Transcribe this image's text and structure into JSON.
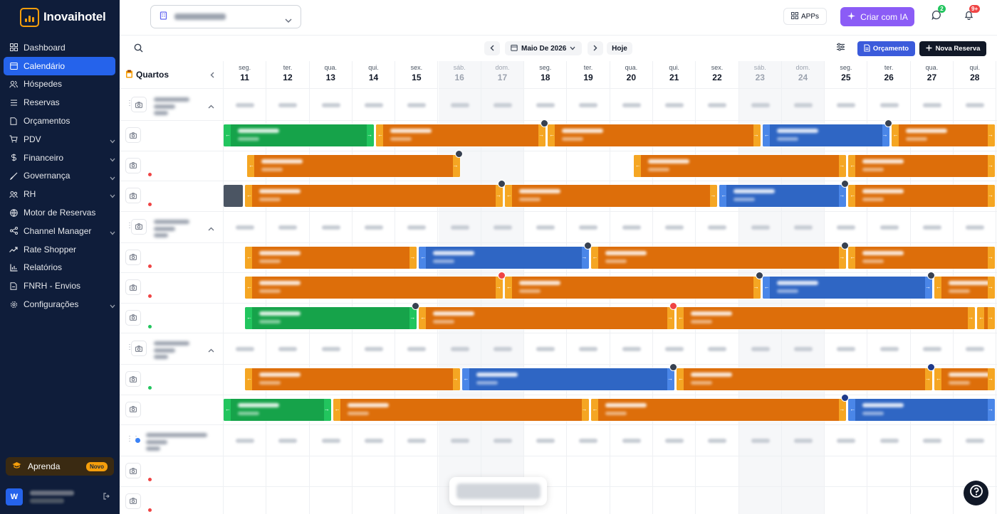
{
  "brand": {
    "name": "Inovaihotel",
    "accent": "#f59e0b"
  },
  "sidebar": {
    "items": [
      {
        "label": "Dashboard",
        "icon": "grid-icon",
        "active": false,
        "has_submenu": false
      },
      {
        "label": "Calendário",
        "icon": "calendar-icon",
        "active": true,
        "has_submenu": false
      },
      {
        "label": "Hóspedes",
        "icon": "users-icon",
        "active": false,
        "has_submenu": false
      },
      {
        "label": "Reservas",
        "icon": "reservations-icon",
        "active": false,
        "has_submenu": false
      },
      {
        "label": "Orçamentos",
        "icon": "document-icon",
        "active": false,
        "has_submenu": false
      },
      {
        "label": "PDV",
        "icon": "cart-icon",
        "active": false,
        "has_submenu": true
      },
      {
        "label": "Financeiro",
        "icon": "money-icon",
        "active": false,
        "has_submenu": true
      },
      {
        "label": "Governança",
        "icon": "broom-icon",
        "active": false,
        "has_submenu": true
      },
      {
        "label": "RH",
        "icon": "team-icon",
        "active": false,
        "has_submenu": true
      },
      {
        "label": "Motor de Reservas",
        "icon": "globe-icon",
        "active": false,
        "has_submenu": false
      },
      {
        "label": "Channel Manager",
        "icon": "share-icon",
        "active": false,
        "has_submenu": true
      },
      {
        "label": "Rate Shopper",
        "icon": "trend-icon",
        "active": false,
        "has_submenu": false
      },
      {
        "label": "Relatórios",
        "icon": "chart-icon",
        "active": false,
        "has_submenu": false
      },
      {
        "label": "FNRH - Envios",
        "icon": "file-send-icon",
        "active": false,
        "has_submenu": false
      },
      {
        "label": "Configurações",
        "icon": "gear-icon",
        "active": false,
        "has_submenu": true
      }
    ],
    "learn": {
      "label": "Aprenda",
      "badge": "Novo"
    },
    "user": {
      "initial": "W"
    }
  },
  "topbar": {
    "apps_label": "APPs",
    "ia_label": "Criar com IA",
    "messages_count": "2",
    "notifications_count": "9+"
  },
  "toolbar": {
    "month_label": "Maio De 2026",
    "today_label": "Hoje",
    "budget_label": "Orçamento",
    "new_reservation_label": "Nova Reserva"
  },
  "calendar": {
    "rooms_title": "Quartos",
    "days": [
      {
        "weekday": "seg.",
        "day": "11",
        "weekend": false
      },
      {
        "weekday": "ter.",
        "day": "12",
        "weekend": false
      },
      {
        "weekday": "qua.",
        "day": "13",
        "weekend": false
      },
      {
        "weekday": "qui.",
        "day": "14",
        "weekend": false
      },
      {
        "weekday": "sex.",
        "day": "15",
        "weekend": false
      },
      {
        "weekday": "sáb.",
        "day": "16",
        "weekend": true
      },
      {
        "weekday": "dom.",
        "day": "17",
        "weekend": true
      },
      {
        "weekday": "seg.",
        "day": "18",
        "weekend": false
      },
      {
        "weekday": "ter.",
        "day": "19",
        "weekend": false
      },
      {
        "weekday": "qua.",
        "day": "20",
        "weekend": false
      },
      {
        "weekday": "qui.",
        "day": "21",
        "weekend": false
      },
      {
        "weekday": "sex.",
        "day": "22",
        "weekend": false
      },
      {
        "weekday": "sáb.",
        "day": "23",
        "weekend": true
      },
      {
        "weekday": "dom.",
        "day": "24",
        "weekend": true
      },
      {
        "weekday": "seg.",
        "day": "25",
        "weekend": false
      },
      {
        "weekday": "ter.",
        "day": "26",
        "weekend": false
      },
      {
        "weekday": "qua.",
        "day": "27",
        "weekend": false
      },
      {
        "weekday": "qui.",
        "day": "28",
        "weekend": false
      }
    ],
    "status_colors": {
      "orange": "#dd6e0a",
      "green": "#16a34a",
      "blue": "#2f66c4",
      "room_dot_red": "#ef4444",
      "room_dot_green": "#22c55e",
      "room_dot_blue": "#3b82f6"
    },
    "rows": [
      {
        "type": "group"
      },
      {
        "type": "room",
        "dot": "none",
        "bars": [
          {
            "from": 0,
            "to": 3.55,
            "color": "green"
          },
          {
            "from": 3.55,
            "to": 7.55,
            "color": "orange",
            "marker": "dark"
          },
          {
            "from": 7.55,
            "to": 12.55,
            "color": "orange"
          },
          {
            "from": 12.55,
            "to": 15.55,
            "color": "blue",
            "marker": "dark"
          },
          {
            "from": 15.55,
            "to": 18.2,
            "color": "orange"
          }
        ]
      },
      {
        "type": "room",
        "dot": "red",
        "bars": [
          {
            "from": 0.55,
            "to": 5.55,
            "color": "orange",
            "marker": "dark"
          },
          {
            "from": 9.55,
            "to": 14.55,
            "color": "orange"
          },
          {
            "from": 14.55,
            "to": 18.2,
            "color": "orange"
          }
        ]
      },
      {
        "type": "room",
        "dot": "red",
        "bars": [
          {
            "from": 0,
            "to": 0.5,
            "color": "gray"
          },
          {
            "from": 0.5,
            "to": 6.55,
            "color": "orange",
            "marker": "dark"
          },
          {
            "from": 6.55,
            "to": 11.55,
            "color": "orange"
          },
          {
            "from": 11.55,
            "to": 14.55,
            "color": "blue",
            "marker": "dark"
          },
          {
            "from": 14.55,
            "to": 18.2,
            "color": "orange"
          }
        ]
      },
      {
        "type": "group"
      },
      {
        "type": "room",
        "dot": "red",
        "bars": [
          {
            "from": 0.5,
            "to": 4.55,
            "color": "orange"
          },
          {
            "from": 4.55,
            "to": 8.55,
            "color": "blue",
            "marker": "dark"
          },
          {
            "from": 8.55,
            "to": 14.55,
            "color": "orange",
            "marker": "dark"
          },
          {
            "from": 14.55,
            "to": 18.2,
            "color": "orange"
          }
        ]
      },
      {
        "type": "room",
        "dot": "red",
        "bars": [
          {
            "from": 0.5,
            "to": 6.55,
            "color": "orange",
            "marker": "red"
          },
          {
            "from": 6.55,
            "to": 12.55,
            "color": "orange",
            "marker": "dark"
          },
          {
            "from": 12.55,
            "to": 16.55,
            "color": "blue",
            "marker": "dark"
          },
          {
            "from": 16.55,
            "to": 18.2,
            "color": "orange"
          }
        ]
      },
      {
        "type": "room",
        "dot": "green",
        "bars": [
          {
            "from": 0.5,
            "to": 4.55,
            "color": "green",
            "marker": "dark"
          },
          {
            "from": 4.55,
            "to": 10.55,
            "color": "orange",
            "marker": "red"
          },
          {
            "from": 10.55,
            "to": 17.55,
            "color": "orange"
          },
          {
            "from": 17.55,
            "to": 18.2,
            "color": "orange"
          }
        ]
      },
      {
        "type": "group"
      },
      {
        "type": "room",
        "dot": "green",
        "bars": [
          {
            "from": 0.5,
            "to": 5.55,
            "color": "orange"
          },
          {
            "from": 5.55,
            "to": 10.55,
            "color": "blue",
            "marker": "dark"
          },
          {
            "from": 10.55,
            "to": 16.55,
            "color": "orange",
            "marker": "navy"
          },
          {
            "from": 16.55,
            "to": 18.2,
            "color": "orange"
          }
        ]
      },
      {
        "type": "room",
        "dot": "none",
        "bars": [
          {
            "from": 0,
            "to": 2.55,
            "color": "green"
          },
          {
            "from": 2.55,
            "to": 8.55,
            "color": "orange"
          },
          {
            "from": 8.55,
            "to": 14.55,
            "color": "orange",
            "marker": "navy"
          },
          {
            "from": 14.55,
            "to": 18.2,
            "color": "blue"
          }
        ]
      },
      {
        "type": "group"
      },
      {
        "type": "room",
        "dot": "red",
        "bars": []
      },
      {
        "type": "room",
        "dot": "red",
        "bars": []
      }
    ]
  }
}
